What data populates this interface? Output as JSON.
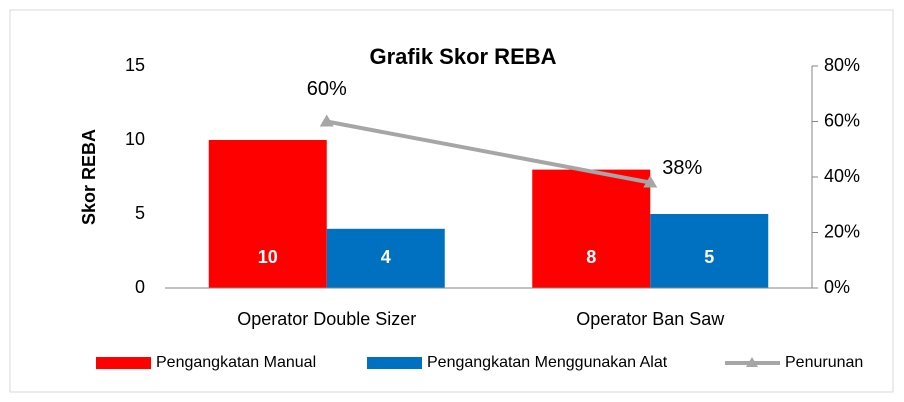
{
  "chart_data": {
    "type": "bar",
    "title": "Grafik Skor REBA",
    "y_label": "Skor REBA",
    "categories": [
      "Operator Double Sizer",
      "Operator Ban Saw"
    ],
    "series": [
      {
        "name": "Pengangkatan Manual",
        "color": "#ff0000",
        "values": [
          10,
          8
        ]
      },
      {
        "name": "Pengangkatan Menggunakan Alat",
        "color": "#0070c0",
        "values": [
          4,
          5
        ]
      },
      {
        "name": "Penurunan",
        "color": "#a6a6a6",
        "type": "line",
        "axis": "y2",
        "values": [
          60,
          38
        ],
        "value_labels": [
          "60%",
          "38%"
        ]
      }
    ],
    "ylim": [
      0,
      15
    ],
    "yticks": [
      0,
      5,
      10,
      15
    ],
    "y2lim": [
      0,
      80
    ],
    "y2ticks": [
      {
        "value": 0,
        "label": "0%"
      },
      {
        "value": 20,
        "label": "20%"
      },
      {
        "value": 40,
        "label": "40%"
      },
      {
        "value": 60,
        "label": "60%"
      },
      {
        "value": 80,
        "label": "80%"
      }
    ],
    "legend": "bottom"
  }
}
